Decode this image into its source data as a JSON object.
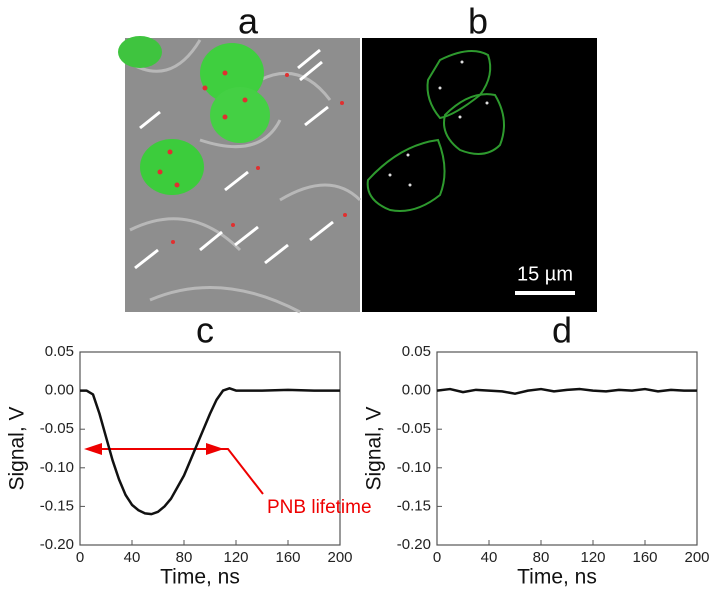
{
  "panels": {
    "a": "a",
    "b": "b"
  },
  "scale_bar": "15 µm",
  "chart_data": [
    {
      "type": "line",
      "title": "c",
      "x_label": "Time, ns",
      "y_label": "Signal, V",
      "annotation": "PNB lifetime",
      "color": "#111111",
      "x": [
        0,
        5,
        10,
        15,
        20,
        25,
        30,
        35,
        40,
        45,
        50,
        55,
        60,
        65,
        70,
        75,
        80,
        85,
        90,
        95,
        100,
        105,
        110,
        115,
        120,
        140,
        160,
        180,
        200
      ],
      "values": [
        0,
        0,
        -0.005,
        -0.03,
        -0.06,
        -0.09,
        -0.115,
        -0.135,
        -0.148,
        -0.155,
        -0.159,
        -0.16,
        -0.157,
        -0.15,
        -0.14,
        -0.125,
        -0.11,
        -0.09,
        -0.07,
        -0.05,
        -0.03,
        -0.012,
        0,
        0.003,
        0,
        0,
        0.001,
        0,
        0
      ],
      "xlim": [
        0,
        200
      ],
      "xticks": [
        0,
        40,
        80,
        120,
        160,
        200
      ],
      "ylim": [
        -0.2,
        0.05
      ],
      "yticks": [
        0.05,
        {
          "value": 0,
          "label": "0.00"
        },
        -0.05,
        {
          "value": -0.1,
          "label": "-0.10"
        },
        -0.15,
        {
          "value": -0.2,
          "label": "-0.20"
        }
      ]
    },
    {
      "type": "line",
      "title": "d",
      "x_label": "Time, ns",
      "y_label": "Signal, V",
      "color": "#111111",
      "x": [
        0,
        10,
        20,
        30,
        40,
        50,
        60,
        70,
        80,
        90,
        100,
        110,
        120,
        130,
        140,
        150,
        160,
        170,
        180,
        190,
        200
      ],
      "values": [
        0,
        0.002,
        -0.002,
        0.001,
        0,
        -0.001,
        -0.004,
        0,
        0.002,
        -0.001,
        0.001,
        0.002,
        0,
        -0.001,
        0.001,
        0,
        0.002,
        -0.001,
        0.001,
        0,
        0
      ],
      "xlim": [
        0,
        200
      ],
      "xticks": [
        0,
        40,
        80,
        120,
        160,
        200
      ],
      "ylim": [
        -0.2,
        0.05
      ],
      "yticks": [
        0.05,
        {
          "value": 0,
          "label": "0.00"
        },
        -0.05,
        {
          "value": -0.1,
          "label": "-0.10"
        },
        -0.15,
        {
          "value": -0.2,
          "label": "-0.20"
        }
      ]
    }
  ]
}
